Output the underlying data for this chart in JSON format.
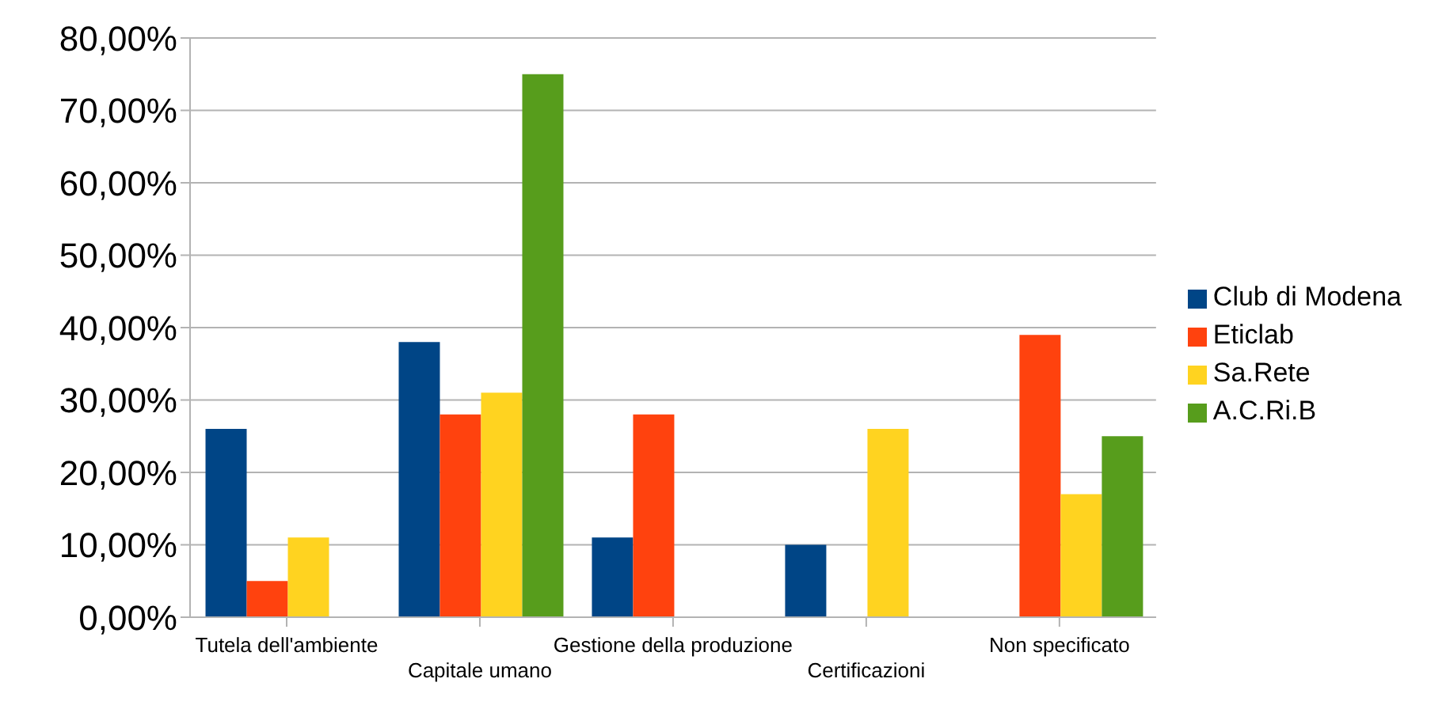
{
  "chart_data": {
    "type": "bar",
    "categories": [
      "Tutela dell'ambiente",
      "Capitale umano",
      "Gestione della produzione",
      "Certificazioni",
      "Non specificato"
    ],
    "series": [
      {
        "name": "Club di Modena",
        "color": "#004586",
        "values": [
          26,
          38,
          11,
          10,
          null
        ]
      },
      {
        "name": "Eticlab",
        "color": "#ff420e",
        "values": [
          5,
          28,
          28,
          null,
          39
        ]
      },
      {
        "name": "Sa.Rete",
        "color": "#ffd320",
        "values": [
          11,
          31,
          null,
          26,
          17
        ]
      },
      {
        "name": "A.C.Ri.B",
        "color": "#579d1c",
        "values": [
          null,
          75,
          null,
          null,
          25
        ]
      }
    ],
    "ylim": [
      0,
      80
    ],
    "yticks": [
      {
        "value": 0,
        "label": "0,00%"
      },
      {
        "value": 10,
        "label": "10,00%"
      },
      {
        "value": 20,
        "label": "20,00%"
      },
      {
        "value": 30,
        "label": "30,00%"
      },
      {
        "value": 40,
        "label": "40,00%"
      },
      {
        "value": 50,
        "label": "50,00%"
      },
      {
        "value": 60,
        "label": "60,00%"
      },
      {
        "value": 70,
        "label": "70,00%"
      },
      {
        "value": 80,
        "label": "80,00%"
      }
    ],
    "grid": "y",
    "legend": "right"
  }
}
